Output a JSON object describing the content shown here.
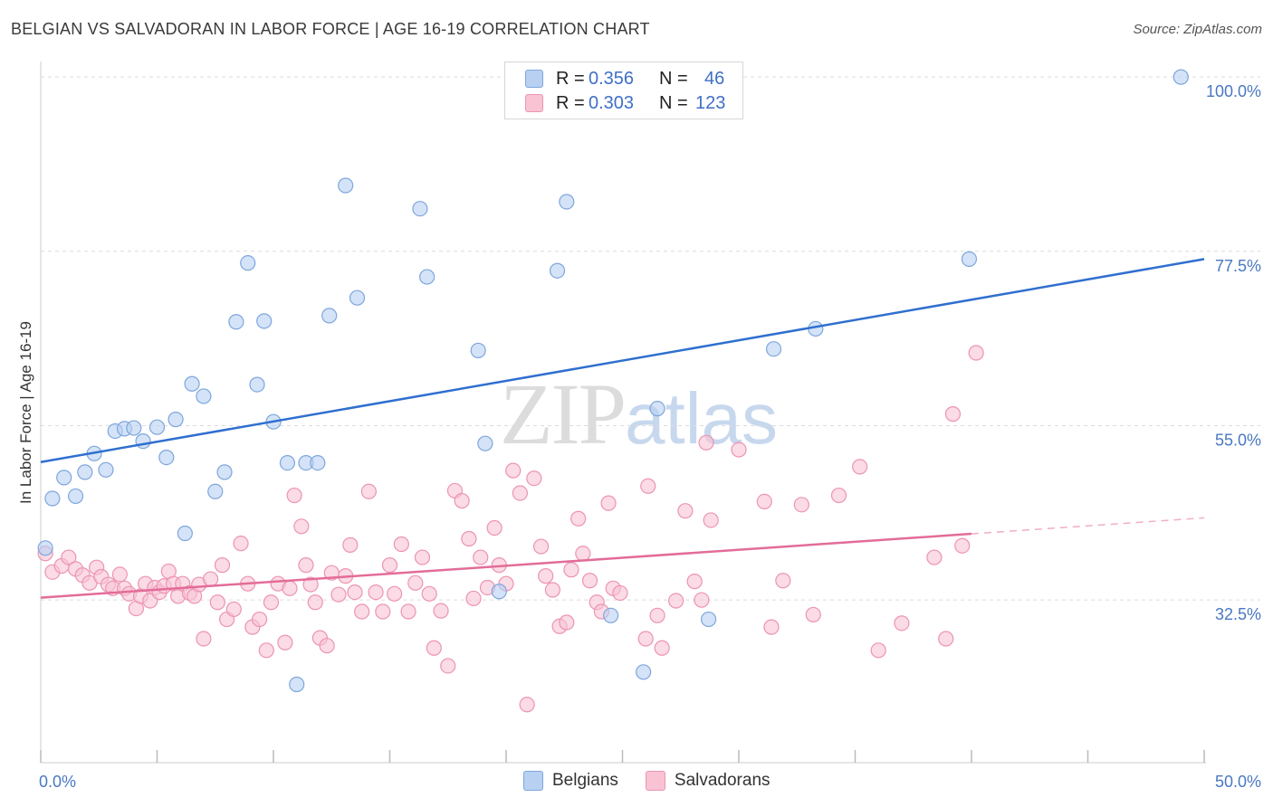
{
  "header": {
    "title": "BELGIAN VS SALVADORAN IN LABOR FORCE | AGE 16-19 CORRELATION CHART",
    "source": "Source: ZipAtlas.com"
  },
  "watermark": {
    "zip": "ZIP",
    "atlas": "atlas"
  },
  "legend": {
    "rows": [
      {
        "r_label": "R =",
        "r_value": "0.356",
        "n_label": "N =",
        "n_value": "46"
      },
      {
        "r_label": "R =",
        "r_value": "0.303",
        "n_label": "N =",
        "n_value": "123"
      }
    ],
    "bottom": [
      "Belgians",
      "Salvadorans"
    ]
  },
  "colors": {
    "belgian_fill": "#b8d0f2",
    "belgian_stroke": "#7ea6dd",
    "belgian_line": "#2f6fcf",
    "salvadoran_fill": "#f9c3d4",
    "salvadoran_stroke": "#ec94b2",
    "salvadoran_line": "#e36c98",
    "tick_text": "#4a78c2",
    "grid": "#dcdcdc"
  },
  "chart_data": {
    "type": "scatter",
    "title": "BELGIAN VS SALVADORAN IN LABOR FORCE | AGE 16-19 CORRELATION CHART",
    "xlabel": "",
    "ylabel": "In Labor Force | Age 16-19",
    "xlim": [
      0,
      50
    ],
    "ylim": [
      11.5,
      102
    ],
    "x_tick_labels": [
      {
        "value": 0,
        "label": "0.0%"
      },
      {
        "value": 50,
        "label": "50.0%"
      }
    ],
    "x_minor_ticks": [
      0,
      5,
      10,
      15,
      20,
      25,
      30,
      35,
      40,
      45,
      50
    ],
    "y_ticks": [
      {
        "value": 100,
        "label": "100.0%"
      },
      {
        "value": 77.5,
        "label": "77.5%"
      },
      {
        "value": 55,
        "label": "55.0%"
      },
      {
        "value": 32.5,
        "label": "32.5%"
      }
    ],
    "series": [
      {
        "name": "Belgians",
        "R": 0.356,
        "N": 46,
        "trend": {
          "x0": 0,
          "y0": 50.3,
          "x1": 50,
          "y1": 76.5,
          "dashed_from": null
        },
        "points": [
          [
            0.2,
            39.2
          ],
          [
            0.5,
            45.6
          ],
          [
            1.0,
            48.3
          ],
          [
            1.5,
            45.9
          ],
          [
            1.9,
            49.0
          ],
          [
            2.3,
            51.4
          ],
          [
            2.8,
            49.3
          ],
          [
            3.2,
            54.3
          ],
          [
            3.6,
            54.6
          ],
          [
            4.0,
            54.7
          ],
          [
            4.4,
            53.0
          ],
          [
            5.0,
            54.8
          ],
          [
            5.4,
            50.9
          ],
          [
            5.8,
            55.8
          ],
          [
            6.2,
            41.1
          ],
          [
            6.5,
            60.4
          ],
          [
            7.0,
            58.8
          ],
          [
            7.5,
            46.5
          ],
          [
            7.9,
            49.0
          ],
          [
            8.4,
            68.4
          ],
          [
            8.9,
            76.0
          ],
          [
            9.3,
            60.3
          ],
          [
            9.6,
            68.5
          ],
          [
            10.0,
            55.5
          ],
          [
            10.6,
            50.2
          ],
          [
            11.0,
            21.6
          ],
          [
            11.4,
            50.2
          ],
          [
            11.9,
            50.2
          ],
          [
            12.4,
            69.2
          ],
          [
            13.1,
            86.0
          ],
          [
            13.6,
            71.5
          ],
          [
            16.3,
            83.0
          ],
          [
            16.6,
            74.2
          ],
          [
            18.8,
            64.7
          ],
          [
            19.1,
            52.7
          ],
          [
            19.7,
            33.6
          ],
          [
            22.6,
            83.9
          ],
          [
            22.2,
            75.0
          ],
          [
            24.5,
            30.5
          ],
          [
            25.9,
            23.2
          ],
          [
            26.5,
            57.2
          ],
          [
            28.7,
            30.0
          ],
          [
            31.5,
            64.9
          ],
          [
            33.3,
            67.5
          ],
          [
            39.9,
            76.5
          ],
          [
            49.0,
            100.0
          ]
        ]
      },
      {
        "name": "Salvadorans",
        "R": 0.303,
        "N": 123,
        "trend": {
          "x0": 0,
          "y0": 32.8,
          "x1": 50,
          "y1": 43.1,
          "dashed_from": 40
        },
        "points": [
          [
            0.2,
            38.5
          ],
          [
            0.5,
            36.1
          ],
          [
            0.9,
            36.9
          ],
          [
            1.2,
            38.0
          ],
          [
            1.5,
            36.5
          ],
          [
            1.8,
            35.7
          ],
          [
            2.1,
            34.7
          ],
          [
            2.4,
            36.7
          ],
          [
            2.6,
            35.5
          ],
          [
            2.9,
            34.5
          ],
          [
            3.1,
            34.0
          ],
          [
            3.4,
            35.8
          ],
          [
            3.6,
            34.0
          ],
          [
            3.8,
            33.3
          ],
          [
            4.1,
            31.4
          ],
          [
            4.3,
            33.0
          ],
          [
            4.5,
            34.6
          ],
          [
            4.7,
            32.4
          ],
          [
            4.9,
            34.1
          ],
          [
            5.1,
            33.5
          ],
          [
            5.3,
            34.3
          ],
          [
            5.5,
            36.2
          ],
          [
            5.7,
            34.6
          ],
          [
            5.9,
            33.0
          ],
          [
            6.1,
            34.6
          ],
          [
            6.4,
            33.4
          ],
          [
            6.6,
            33.0
          ],
          [
            6.8,
            34.5
          ],
          [
            7.0,
            27.5
          ],
          [
            7.3,
            35.2
          ],
          [
            7.6,
            32.2
          ],
          [
            7.8,
            37.0
          ],
          [
            8.0,
            30.0
          ],
          [
            8.3,
            31.3
          ],
          [
            8.6,
            39.8
          ],
          [
            8.9,
            34.6
          ],
          [
            9.1,
            29.0
          ],
          [
            9.4,
            30.0
          ],
          [
            9.7,
            26.0
          ],
          [
            9.9,
            32.2
          ],
          [
            10.2,
            34.6
          ],
          [
            10.5,
            27.0
          ],
          [
            10.7,
            34.0
          ],
          [
            10.9,
            46.0
          ],
          [
            11.2,
            42.0
          ],
          [
            11.4,
            37.0
          ],
          [
            11.6,
            34.5
          ],
          [
            11.8,
            32.2
          ],
          [
            12.0,
            27.6
          ],
          [
            12.3,
            26.6
          ],
          [
            12.5,
            36.0
          ],
          [
            12.8,
            33.2
          ],
          [
            13.1,
            35.6
          ],
          [
            13.3,
            39.6
          ],
          [
            13.5,
            33.5
          ],
          [
            13.8,
            31.0
          ],
          [
            14.1,
            46.5
          ],
          [
            14.4,
            33.5
          ],
          [
            14.7,
            31.0
          ],
          [
            15.0,
            37.0
          ],
          [
            15.2,
            33.3
          ],
          [
            15.5,
            39.7
          ],
          [
            15.8,
            31.0
          ],
          [
            16.1,
            34.7
          ],
          [
            16.4,
            38.0
          ],
          [
            16.7,
            33.3
          ],
          [
            16.9,
            26.3
          ],
          [
            17.2,
            31.1
          ],
          [
            17.5,
            24.0
          ],
          [
            17.8,
            46.6
          ],
          [
            18.1,
            45.3
          ],
          [
            18.4,
            40.4
          ],
          [
            18.6,
            32.7
          ],
          [
            18.9,
            38.0
          ],
          [
            19.2,
            34.1
          ],
          [
            19.5,
            41.8
          ],
          [
            19.7,
            37.0
          ],
          [
            20.0,
            34.6
          ],
          [
            20.3,
            49.2
          ],
          [
            20.6,
            46.3
          ],
          [
            20.9,
            19.0
          ],
          [
            21.2,
            48.2
          ],
          [
            21.5,
            39.4
          ],
          [
            21.7,
            35.6
          ],
          [
            22.0,
            33.8
          ],
          [
            22.3,
            29.1
          ],
          [
            22.6,
            29.6
          ],
          [
            22.8,
            36.4
          ],
          [
            23.1,
            43.0
          ],
          [
            23.3,
            38.5
          ],
          [
            23.6,
            35.0
          ],
          [
            23.9,
            32.2
          ],
          [
            24.1,
            31.0
          ],
          [
            24.4,
            45.0
          ],
          [
            24.6,
            34.0
          ],
          [
            24.9,
            33.4
          ],
          [
            26.1,
            47.2
          ],
          [
            26.0,
            27.5
          ],
          [
            26.5,
            30.5
          ],
          [
            26.7,
            26.3
          ],
          [
            27.3,
            32.4
          ],
          [
            27.7,
            44.0
          ],
          [
            28.1,
            34.9
          ],
          [
            28.4,
            32.5
          ],
          [
            28.8,
            42.8
          ],
          [
            28.6,
            52.8
          ],
          [
            30.0,
            51.9
          ],
          [
            31.1,
            45.2
          ],
          [
            31.4,
            29.0
          ],
          [
            31.9,
            35.0
          ],
          [
            32.7,
            44.8
          ],
          [
            33.2,
            30.6
          ],
          [
            34.3,
            46.0
          ],
          [
            35.2,
            49.7
          ],
          [
            36.0,
            26.0
          ],
          [
            37.0,
            29.5
          ],
          [
            38.4,
            38.0
          ],
          [
            38.9,
            27.5
          ],
          [
            39.2,
            56.5
          ],
          [
            39.6,
            39.5
          ],
          [
            40.2,
            64.4
          ]
        ]
      }
    ]
  }
}
